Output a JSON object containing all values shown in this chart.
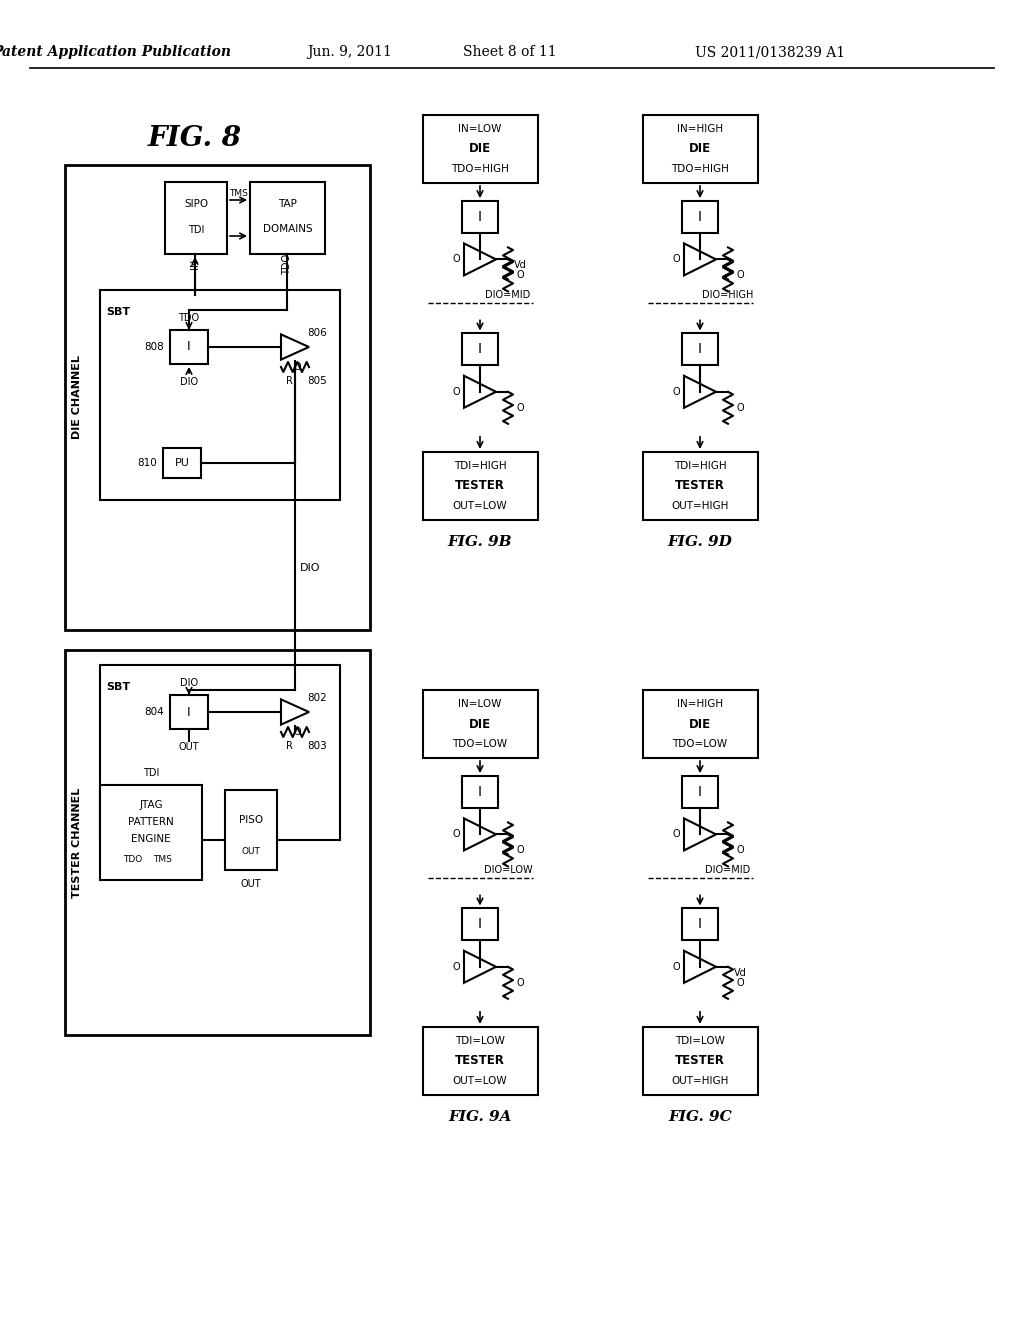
{
  "background": "#ffffff",
  "header_left": "Patent Application Publication",
  "header_mid1": "Jun. 9, 2011",
  "header_mid2": "Sheet 8 of 11",
  "header_right": "US 2011/0138239 A1",
  "fig8_label": "FIG. 8",
  "fig9A_label": "FIG. 9A",
  "fig9B_label": "FIG. 9B",
  "fig9C_label": "FIG. 9C",
  "fig9D_label": "FIG. 9D",
  "fig9A": {
    "in": "IN=LOW",
    "die": "DIE",
    "tdo_top": "TDO=LOW",
    "dashed": "DIO=LOW",
    "tdi": "TDI=LOW",
    "tester": "TESTER",
    "out": "OUT=LOW",
    "show_vd_top": false,
    "show_vd_bot": false
  },
  "fig9B": {
    "in": "IN=LOW",
    "die": "DIE",
    "tdo_top": "TDO=HIGH",
    "dashed": "DIO=MID",
    "tdi": "TDI=HIGH",
    "tester": "TESTER",
    "out": "OUT=LOW",
    "show_vd_top": true,
    "show_vd_bot": false
  },
  "fig9C": {
    "in": "IN=HIGH",
    "die": "DIE",
    "tdo_top": "TDO=LOW",
    "dashed": "DIO=MID",
    "tdi": "TDI=LOW",
    "tester": "TESTER",
    "out": "OUT=HIGH",
    "show_vd_top": false,
    "show_vd_bot": true
  },
  "fig9D": {
    "in": "IN=HIGH",
    "die": "DIE",
    "tdo_top": "TDO=HIGH",
    "dashed": "DIO=HIGH",
    "tdi": "TDI=HIGH",
    "tester": "TESTER",
    "out": "OUT=HIGH",
    "show_vd_top": false,
    "show_vd_bot": false
  }
}
